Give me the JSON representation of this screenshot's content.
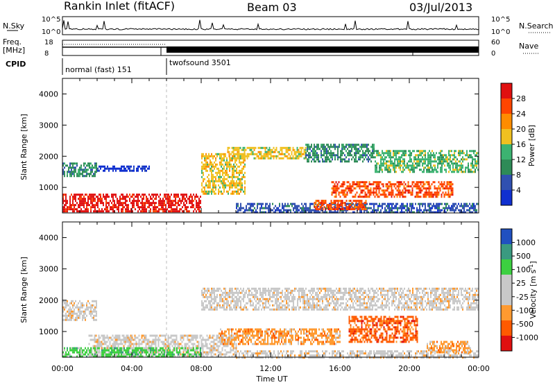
{
  "header": {
    "station": "Rankin Inlet (fitACF)",
    "beam": "Beam 03",
    "date": "03/Jul/2013"
  },
  "status_panels": {
    "nsky_label": "N.Sky",
    "nsearch_label": "N.Search",
    "freq_label_top": "Freq.",
    "freq_label_bottom": "[MHz]",
    "nave_label": "Nave",
    "cpid_label": "CPID",
    "left_ticks": [
      "10^5",
      "10^0"
    ],
    "right_ticks": [
      "10^5",
      "10^0"
    ],
    "freq_ticks": [
      "18",
      "8"
    ],
    "nave_ticks": [
      "60",
      "0"
    ],
    "cpid_segments": [
      {
        "start_hour": 0,
        "end_hour": 6,
        "label": "normal (fast) 151"
      },
      {
        "start_hour": 6,
        "end_hour": 24,
        "label": "twofsound 3501"
      }
    ]
  },
  "colors": {
    "power": [
      "#1030d0",
      "#3050b0",
      "#2e8b57",
      "#3cb371",
      "#f0c020",
      "#ff8c00",
      "#ff4500",
      "#e01010"
    ],
    "velocity": [
      "#e01010",
      "#ff5a00",
      "#ff9a30",
      "#c8c8c8",
      "#c8c8c8",
      "#3cd040",
      "#3a9a80",
      "#2050c0"
    ]
  },
  "chart_data": [
    {
      "type": "heatmap",
      "title": "",
      "xlabel": "",
      "ylabel": "Slant Range [km]",
      "colorbar_label": "Power [dB]",
      "colorbar_ticks": [
        "28",
        "24",
        "20",
        "16",
        "12",
        "8",
        "4"
      ],
      "x_ticks": [
        "00:00",
        "04:00",
        "08:00",
        "12:00",
        "16:00",
        "20:00",
        "00:00"
      ],
      "y_ticks": [
        "4000",
        "3000",
        "2000",
        "1000"
      ],
      "xlim_hours": [
        0,
        24
      ],
      "ylim_km": [
        180,
        4500
      ],
      "regions": [
        {
          "t0": 0.0,
          "t1": 8.0,
          "r0": 200,
          "r1": 800,
          "level": 7
        },
        {
          "t0": 0.0,
          "t1": 2.0,
          "r0": 1350,
          "r1": 1800,
          "level": 2
        },
        {
          "t0": 2.0,
          "t1": 5.0,
          "r0": 1500,
          "r1": 1700,
          "level": 0
        },
        {
          "t0": 8.0,
          "t1": 10.5,
          "r0": 800,
          "r1": 2100,
          "level": 4
        },
        {
          "t0": 9.5,
          "t1": 14.0,
          "r0": 1900,
          "r1": 2300,
          "level": 4
        },
        {
          "t0": 14.0,
          "t1": 18.0,
          "r0": 1800,
          "r1": 2400,
          "level": 2
        },
        {
          "t0": 18.0,
          "t1": 24.0,
          "r0": 1500,
          "r1": 2200,
          "level": 3
        },
        {
          "t0": 15.5,
          "t1": 22.5,
          "r0": 700,
          "r1": 1200,
          "level": 6
        },
        {
          "t0": 10.0,
          "t1": 24.0,
          "r0": 200,
          "r1": 500,
          "level": 1
        },
        {
          "t0": 14.5,
          "t1": 17.5,
          "r0": 300,
          "r1": 600,
          "level": 6
        }
      ]
    },
    {
      "type": "heatmap",
      "title": "",
      "xlabel": "Time UT",
      "ylabel": "Slant Range [km]",
      "colorbar_label": "Velocity [m s^-1]",
      "colorbar_ticks": [
        "1000",
        "500",
        "100",
        "25",
        "-25",
        "-100",
        "-500",
        "-1000"
      ],
      "x_ticks": [
        "00:00",
        "04:00",
        "08:00",
        "12:00",
        "16:00",
        "20:00",
        "00:00"
      ],
      "y_ticks": [
        "4000",
        "3000",
        "2000",
        "1000"
      ],
      "xlim_hours": [
        0,
        24
      ],
      "ylim_km": [
        180,
        4500
      ],
      "regions": [
        {
          "t0": 0.0,
          "t1": 2.0,
          "r0": 1400,
          "r1": 2000,
          "level": 3
        },
        {
          "t0": 1.5,
          "t1": 10.0,
          "r0": 200,
          "r1": 900,
          "level": 3
        },
        {
          "t0": 0.0,
          "t1": 8.0,
          "r0": 200,
          "r1": 500,
          "level": 5
        },
        {
          "t0": 8.0,
          "t1": 24.0,
          "r0": 1700,
          "r1": 2400,
          "level": 3
        },
        {
          "t0": 16.5,
          "t1": 20.5,
          "r0": 700,
          "r1": 1500,
          "level": 1
        },
        {
          "t0": 9.0,
          "t1": 16.0,
          "r0": 600,
          "r1": 1100,
          "level": 2
        },
        {
          "t0": 10.0,
          "t1": 24.0,
          "r0": 200,
          "r1": 400,
          "level": 3
        },
        {
          "t0": 21.0,
          "t1": 23.5,
          "r0": 350,
          "r1": 700,
          "level": 2
        }
      ]
    }
  ]
}
